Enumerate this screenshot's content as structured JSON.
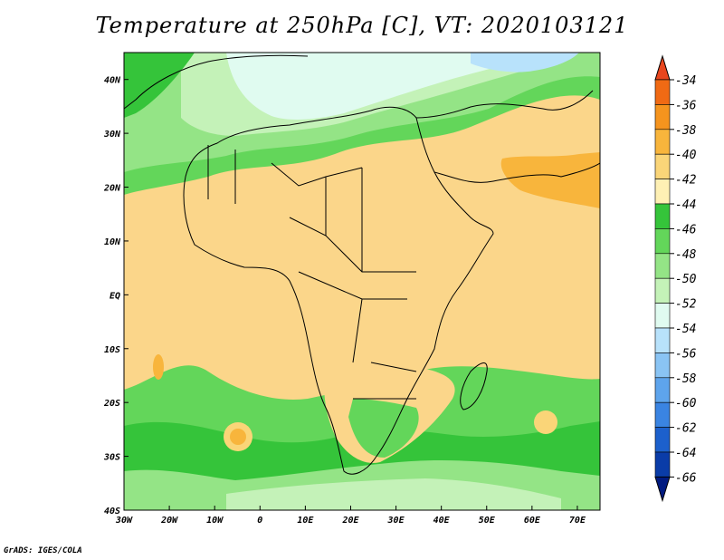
{
  "title": "Temperature at 250hPa [C], VT: 2020103121",
  "credit": "GrADS: IGES/COLA",
  "map": {
    "lon_range": [
      -30,
      75
    ],
    "lat_range": [
      -40,
      45
    ],
    "lon_ticks": [
      "30W",
      "20W",
      "10W",
      "0",
      "10E",
      "20E",
      "30E",
      "40E",
      "50E",
      "60E",
      "70E"
    ],
    "lat_ticks": [
      "40N",
      "30N",
      "20N",
      "10N",
      "EQ",
      "10S",
      "20S",
      "30S",
      "40S"
    ]
  },
  "colorbar": {
    "labels": [
      "-34",
      "-36",
      "-38",
      "-40",
      "-42",
      "-44",
      "-46",
      "-48",
      "-50",
      "-52",
      "-54",
      "-56",
      "-58",
      "-60",
      "-62",
      "-64",
      "-66"
    ],
    "colors": [
      "#e8461e",
      "#f06a14",
      "#f5941e",
      "#f8b53c",
      "#fad578",
      "#fef0b4",
      "#35c43a",
      "#63d65a",
      "#94e486",
      "#c4f2b8",
      "#e0fbf0",
      "#b8e2fb",
      "#8ac4f4",
      "#5ea4ec",
      "#3a84e2",
      "#1c60cc",
      "#0a3ca8",
      "#001a80"
    ]
  }
}
